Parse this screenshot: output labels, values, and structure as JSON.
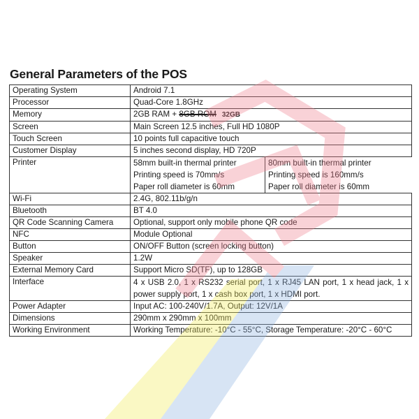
{
  "title": "General Parameters of the POS",
  "rows": [
    {
      "label": "Operating System",
      "value": "Android 7.1"
    },
    {
      "label": "Processor",
      "value": "Quad-Core 1.8GHz"
    },
    {
      "label": "Memory",
      "value": "2GB RAM + ",
      "struck": "8GB ROM",
      "correction": "32GB"
    },
    {
      "label": "Screen",
      "value": "Main Screen 12.5 inches, Full HD 1080P"
    },
    {
      "label": "Touch Screen",
      "value": "10 points full capacitive touch"
    },
    {
      "label": "Customer Display",
      "value": "5 inches second display, HD 720P"
    },
    {
      "label": "Printer",
      "options": [
        [
          "58mm built-in thermal printer",
          "Printing speed is 70mm/s",
          "Paper roll diameter is 60mm"
        ],
        [
          "80mm built-in thermal printer",
          "Printing speed is 160mm/s",
          "Paper roll diameter is 60mm"
        ]
      ]
    },
    {
      "label": "Wi-Fi",
      "value": "2.4G, 802.11b/g/n"
    },
    {
      "label": "Bluetooth",
      "value": "BT 4.0"
    },
    {
      "label": "QR Code Scanning Camera",
      "value": "Optional, support only mobile phone QR code"
    },
    {
      "label": "NFC",
      "value": "Module Optional"
    },
    {
      "label": "Button",
      "value": "ON/OFF Button (screen locking button)"
    },
    {
      "label": "Speaker",
      "value": "1.2W"
    },
    {
      "label": "External Memory Card",
      "value": "Support Micro SD(TF), up to 128GB"
    },
    {
      "label": "Interface",
      "value": "4 x USB 2.0, 1 x RS232 serial port, 1 x RJ45 LAN port, 1 x head jack, 1 x power supply port, 1 x cash box port, 1 x HDMI port."
    },
    {
      "label": "Power Adapter",
      "value": "Input AC: 100-240V/1.7A, Output: 12V/1A"
    },
    {
      "label": "Dimensions",
      "value": "290mm x 290mm x 100mm"
    },
    {
      "label": "Working Environment",
      "value": "Working Temperature: -10°C - 55°C, Storage Temperature: -20°C - 60°C"
    }
  ],
  "watermark_colors": {
    "red": "#f5a0a8",
    "yellow": "#f3ec5a",
    "blue": "#8fb3e0"
  }
}
